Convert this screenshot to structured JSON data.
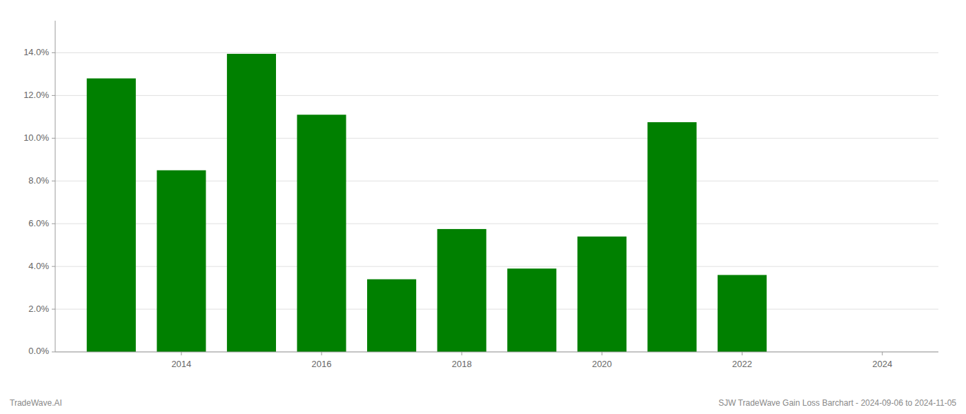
{
  "chart_data": {
    "type": "bar",
    "x": [
      2013,
      2014,
      2015,
      2016,
      2017,
      2018,
      2019,
      2020,
      2021,
      2022
    ],
    "values": [
      0.128,
      0.085,
      0.1395,
      0.111,
      0.034,
      0.0575,
      0.039,
      0.054,
      0.1075,
      0.036
    ],
    "color": "#008000",
    "xlim": [
      2012.2,
      2024.8
    ],
    "xticks": [
      2014,
      2016,
      2018,
      2020,
      2022,
      2024
    ],
    "ylim": [
      0,
      0.155
    ],
    "yticks": [
      {
        "value": 0.0,
        "label": "0.0%"
      },
      {
        "value": 0.02,
        "label": "2.0%"
      },
      {
        "value": 0.04,
        "label": "4.0%"
      },
      {
        "value": 0.06,
        "label": "6.0%"
      },
      {
        "value": 0.08,
        "label": "8.0%"
      },
      {
        "value": 0.1,
        "label": "10.0%"
      },
      {
        "value": 0.12,
        "label": "12.0%"
      },
      {
        "value": 0.14,
        "label": "14.0%"
      }
    ],
    "grid": true,
    "annotations": [
      "TradeWave.AI",
      "SJW TradeWave Gain Loss Barchart - 2024-09-06 to 2024-11-05"
    ]
  }
}
